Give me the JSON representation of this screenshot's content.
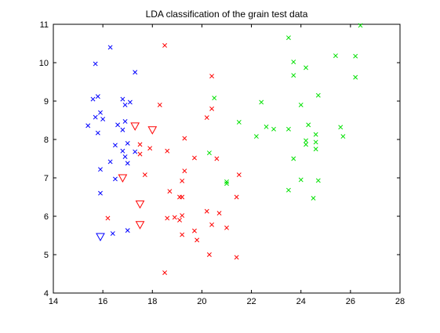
{
  "chart_data": {
    "type": "scatter",
    "title": "LDA classification of the grain test data",
    "xlabel": "",
    "ylabel": "",
    "xlim": [
      14,
      28
    ],
    "ylim": [
      4,
      11
    ],
    "xticks": [
      "14",
      "16",
      "18",
      "20",
      "22",
      "24",
      "26",
      "28"
    ],
    "yticks": [
      "4",
      "5",
      "6",
      "7",
      "8",
      "9",
      "10",
      "11"
    ],
    "xtick_values": [
      14,
      16,
      18,
      20,
      22,
      24,
      26,
      28
    ],
    "ytick_values": [
      4,
      5,
      6,
      7,
      8,
      9,
      10,
      11
    ],
    "grid": false,
    "legend": "none",
    "series": [
      {
        "color": "#0000ff",
        "marker": "x",
        "points": [
          [
            16.3,
            10.4
          ],
          [
            15.7,
            9.97
          ],
          [
            17.3,
            9.75
          ],
          [
            15.8,
            9.12
          ],
          [
            15.6,
            9.05
          ],
          [
            16.8,
            9.05
          ],
          [
            17.1,
            8.97
          ],
          [
            16.9,
            8.9
          ],
          [
            15.9,
            8.7
          ],
          [
            15.7,
            8.58
          ],
          [
            16.0,
            8.53
          ],
          [
            16.9,
            8.47
          ],
          [
            16.6,
            8.38
          ],
          [
            15.4,
            8.36
          ],
          [
            16.8,
            8.25
          ],
          [
            15.8,
            8.17
          ],
          [
            17.0,
            7.9
          ],
          [
            16.5,
            7.85
          ],
          [
            16.8,
            7.7
          ],
          [
            17.3,
            7.68
          ],
          [
            16.9,
            7.55
          ],
          [
            16.3,
            7.42
          ],
          [
            17.0,
            7.38
          ],
          [
            15.9,
            7.22
          ],
          [
            16.5,
            6.97
          ],
          [
            15.9,
            6.6
          ],
          [
            17.0,
            5.63
          ],
          [
            16.4,
            5.55
          ]
        ]
      },
      {
        "color": "#ff0000",
        "marker": "x",
        "points": [
          [
            18.5,
            10.45
          ],
          [
            20.4,
            9.65
          ],
          [
            18.3,
            8.9
          ],
          [
            20.4,
            8.8
          ],
          [
            20.2,
            8.57
          ],
          [
            19.3,
            8.03
          ],
          [
            17.5,
            7.87
          ],
          [
            17.9,
            7.77
          ],
          [
            18.6,
            7.7
          ],
          [
            17.5,
            7.62
          ],
          [
            19.7,
            7.52
          ],
          [
            20.6,
            7.5
          ],
          [
            19.3,
            7.18
          ],
          [
            21.5,
            7.08
          ],
          [
            17.7,
            7.08
          ],
          [
            19.2,
            6.92
          ],
          [
            18.7,
            6.65
          ],
          [
            19.1,
            6.5
          ],
          [
            19.2,
            6.5
          ],
          [
            21.4,
            6.5
          ],
          [
            20.2,
            6.13
          ],
          [
            20.7,
            6.08
          ],
          [
            16.2,
            5.95
          ],
          [
            18.6,
            5.95
          ],
          [
            19.2,
            6.02
          ],
          [
            18.9,
            5.97
          ],
          [
            19.1,
            5.9
          ],
          [
            20.4,
            5.78
          ],
          [
            21.0,
            5.7
          ],
          [
            19.7,
            5.62
          ],
          [
            19.2,
            5.52
          ],
          [
            19.8,
            5.38
          ],
          [
            20.3,
            5.0
          ],
          [
            21.4,
            4.93
          ],
          [
            18.5,
            4.53
          ]
        ]
      },
      {
        "color": "#00e000",
        "marker": "x",
        "points": [
          [
            26.4,
            10.97
          ],
          [
            23.5,
            10.65
          ],
          [
            25.4,
            10.18
          ],
          [
            26.2,
            10.17
          ],
          [
            23.7,
            10.02
          ],
          [
            24.2,
            9.87
          ],
          [
            23.7,
            9.67
          ],
          [
            26.2,
            9.62
          ],
          [
            24.7,
            9.15
          ],
          [
            20.5,
            9.08
          ],
          [
            22.4,
            8.97
          ],
          [
            24.0,
            8.9
          ],
          [
            24.3,
            8.38
          ],
          [
            22.6,
            8.33
          ],
          [
            25.6,
            8.32
          ],
          [
            22.9,
            8.27
          ],
          [
            23.5,
            8.27
          ],
          [
            24.6,
            8.13
          ],
          [
            22.2,
            8.08
          ],
          [
            25.7,
            8.08
          ],
          [
            24.2,
            7.97
          ],
          [
            24.6,
            7.93
          ],
          [
            24.2,
            7.87
          ],
          [
            24.6,
            7.75
          ],
          [
            20.3,
            7.65
          ],
          [
            23.7,
            7.5
          ],
          [
            21.0,
            6.9
          ],
          [
            21.0,
            6.85
          ],
          [
            24.0,
            6.95
          ],
          [
            24.7,
            6.93
          ],
          [
            23.5,
            6.68
          ],
          [
            24.5,
            6.47
          ],
          [
            21.5,
            8.45
          ]
        ]
      },
      {
        "color": "#ff0000",
        "marker": "triangle-down",
        "points": [
          [
            17.3,
            8.35
          ],
          [
            18.0,
            8.25
          ],
          [
            16.8,
            7.0
          ],
          [
            17.5,
            6.32
          ],
          [
            17.5,
            5.78
          ]
        ]
      },
      {
        "color": "#0000ff",
        "marker": "triangle-down",
        "points": [
          [
            15.9,
            5.47
          ]
        ]
      }
    ]
  }
}
